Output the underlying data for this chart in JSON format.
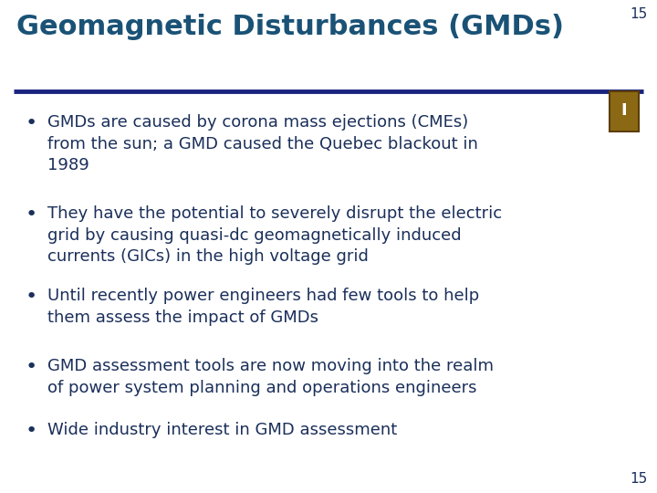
{
  "title": "Geomagnetic Disturbances (GMDs)",
  "slide_number": "15",
  "title_color": "#1A5276",
  "title_fontsize": 22,
  "background_color": "#FFFFFF",
  "line_color": "#1A237E",
  "bullet_color": "#1A2F5A",
  "bullet_fontsize": 13.0,
  "bullets": [
    "GMDs are caused by corona mass ejections (CMEs)\nfrom the sun; a GMD caused the Quebec blackout in\n1989",
    "They have the potential to severely disrupt the electric\ngrid by causing quasi-dc geomagnetically induced\ncurrents (GICs) in the high voltage grid",
    "Until recently power engineers had few tools to help\nthem assess the impact of GMDs",
    "GMD assessment tools are now moving into the realm\nof power system planning and operations engineers",
    "Wide industry interest in GMD assessment"
  ],
  "page_num_fontsize": 11,
  "page_num_color": "#1A2F5A",
  "icon_face_color": "#8B6914",
  "icon_edge_color": "#5C3D0A"
}
